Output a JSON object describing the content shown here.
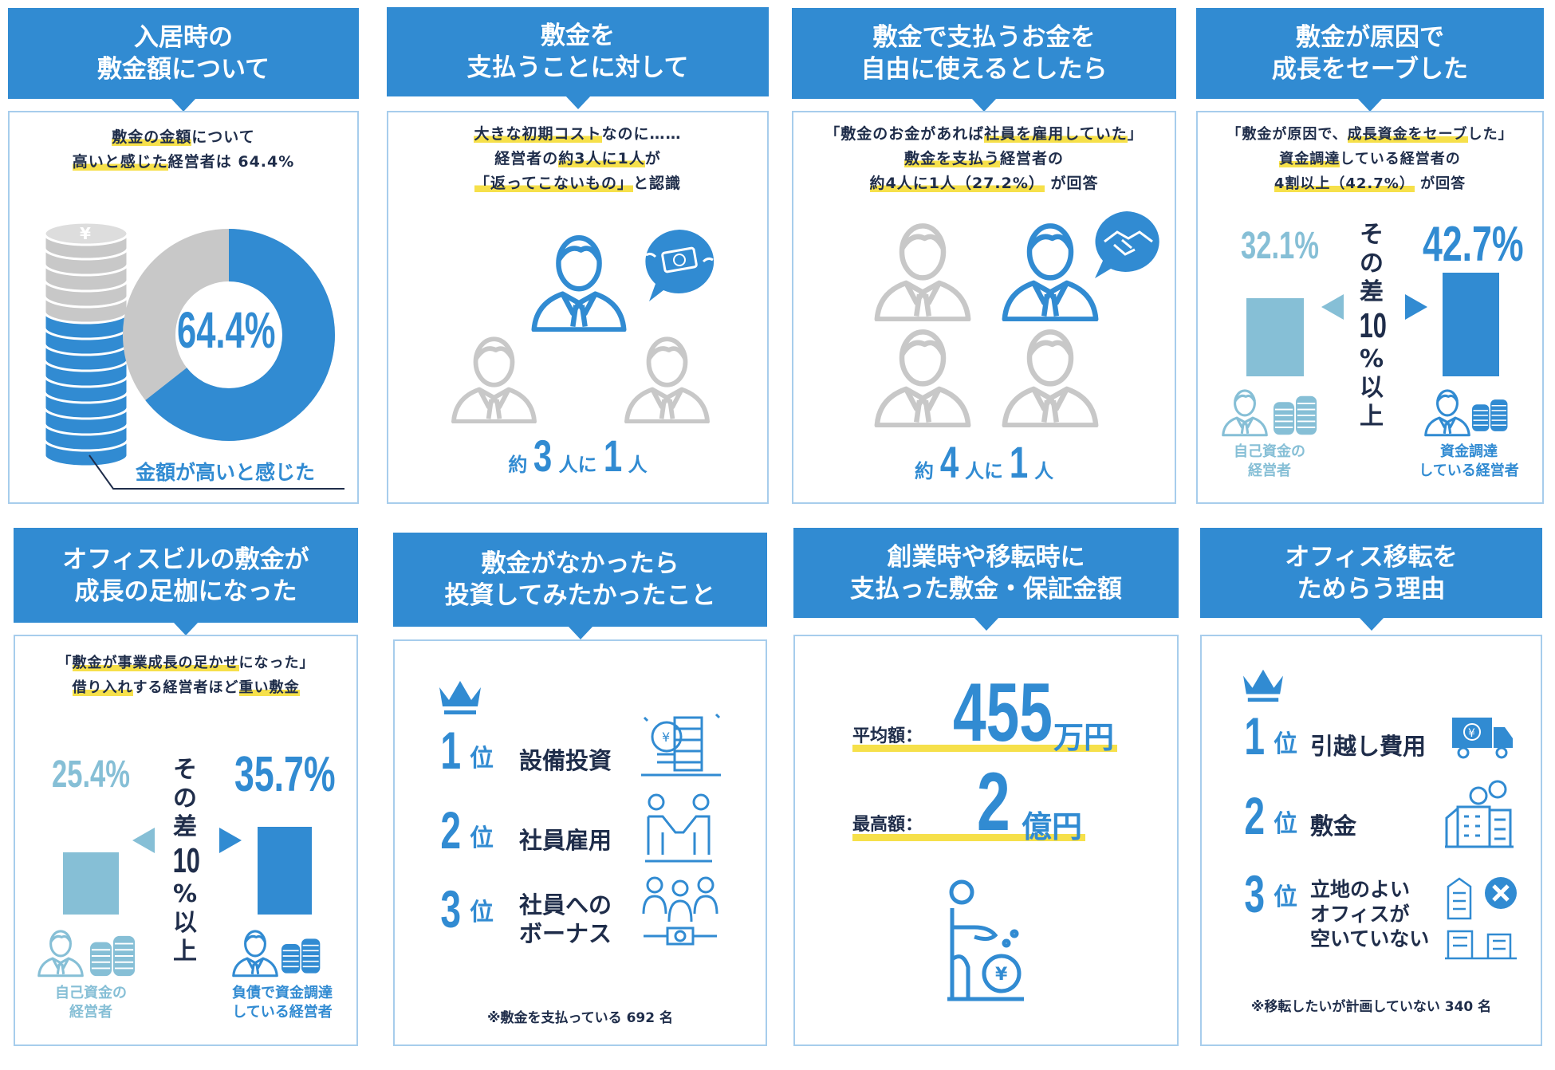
{
  "colors": {
    "primary": "#318bd2",
    "light": "#86bfd6",
    "gray": "#c8c8c8",
    "text": "#1f2d4a",
    "highlight": "#f6e04a"
  },
  "p1": {
    "title": [
      "入居時の",
      "敷金額について"
    ],
    "lines": [
      [
        {
          "t": "敷金の金額",
          "hl": true
        },
        {
          "t": "について"
        }
      ],
      [
        {
          "t": "高いと感じた",
          "hl": true
        },
        {
          "t": "経営者は 64.4%"
        }
      ]
    ],
    "donut": {
      "value": 64.4,
      "label": "64.4%",
      "caption": "金額が高いと感じた"
    }
  },
  "p2": {
    "title": [
      "敷金を",
      "支払うことに対して"
    ],
    "lines": [
      [
        {
          "t": "大きな初期コスト",
          "hl": true
        },
        {
          "t": "なのに……"
        }
      ],
      [
        {
          "t": "経営者の"
        },
        {
          "t": "約3人に1人",
          "hl": true
        },
        {
          "t": "が"
        }
      ],
      [
        {
          "t": "「返ってこないもの」",
          "hl": true
        },
        {
          "t": "と認識"
        }
      ]
    ],
    "ratio": {
      "prefix": "約",
      "n": "3",
      "mid": "人に",
      "one": "1",
      "suffix": "人"
    },
    "bubble_icon": "flying-money-icon"
  },
  "p3": {
    "title": [
      "敷金で支払うお金を",
      "自由に使えるとしたら"
    ],
    "lines": [
      [
        {
          "t": "「敷金のお金があれば"
        },
        {
          "t": "社員を雇用していた",
          "hl": true
        },
        {
          "t": "」"
        }
      ],
      [
        {
          "t": "敷金を支払う",
          "hl": true
        },
        {
          "t": "経営者の"
        }
      ],
      [
        {
          "t": "約4人に1人（27.2%）",
          "hl": true
        },
        {
          "t": " が回答"
        }
      ]
    ],
    "ratio": {
      "prefix": "約",
      "n": "4",
      "mid": "人に",
      "one": "1",
      "suffix": "人"
    },
    "bubble_icon": "handshake-icon"
  },
  "p4": {
    "title": [
      "敷金が原因で",
      "成長をセーブした"
    ],
    "lines": [
      [
        {
          "t": "「敷金が原因で、"
        },
        {
          "t": "成長資金をセーブ",
          "hl": true
        },
        {
          "t": "した」"
        }
      ],
      [
        {
          "t": "資金調達",
          "hl": true
        },
        {
          "t": "している経営者の"
        }
      ],
      [
        {
          "t": "4割以上（42.7%）",
          "hl": true
        },
        {
          "t": " が回答"
        }
      ]
    ],
    "left": {
      "value": 32.1,
      "label": "32.1%",
      "caption": [
        "自己資金の",
        "経営者"
      ]
    },
    "right": {
      "value": 42.7,
      "label": "42.7%",
      "caption": [
        "資金調達",
        "している経営者"
      ]
    },
    "diff": [
      "そ",
      "の",
      "差",
      "10",
      "%",
      "以",
      "上"
    ]
  },
  "p5": {
    "title": [
      "オフィスビルの敷金が",
      "成長の足枷になった"
    ],
    "lines": [
      [
        {
          "t": "「"
        },
        {
          "t": "敷金が事業成長の足かせ",
          "hl": true
        },
        {
          "t": "になった」"
        }
      ],
      [
        {
          "t": "借り入れ",
          "hl": true
        },
        {
          "t": "する経営者ほど"
        },
        {
          "t": "重い敷金",
          "hl": true
        }
      ]
    ],
    "left": {
      "value": 25.4,
      "label": "25.4%",
      "caption": [
        "自己資金の",
        "経営者"
      ]
    },
    "right": {
      "value": 35.7,
      "label": "35.7%",
      "caption": [
        "負債で資金調達",
        "している経営者"
      ]
    },
    "diff": [
      "そ",
      "の",
      "差",
      "10",
      "%",
      "以",
      "上"
    ]
  },
  "p6": {
    "title": [
      "敷金がなかったら",
      "投資してみたかったこと"
    ],
    "ranks": [
      {
        "n": "1",
        "suffix": "位",
        "label": "設備投資",
        "icon": "equipment-investment-icon"
      },
      {
        "n": "2",
        "suffix": "位",
        "label": "社員雇用",
        "icon": "hiring-handshake-icon"
      },
      {
        "n": "3",
        "suffix": "位",
        "label": "社員への\nボーナス",
        "icon": "team-bonus-icon"
      }
    ],
    "note": "※敷金を支払っている 692 名"
  },
  "p7": {
    "title": [
      "創業時や移転時に",
      "支払った敷金・保証金額"
    ],
    "avg": {
      "label": "平均額：",
      "value": "455",
      "unit": "万円"
    },
    "max": {
      "label": "最高額：",
      "value": "2",
      "unit": "億円"
    }
  },
  "p8": {
    "title": [
      "オフィス移転を",
      "ためらう理由"
    ],
    "ranks": [
      {
        "n": "1",
        "suffix": "位",
        "label": "引越し費用",
        "icon": "moving-truck-icon"
      },
      {
        "n": "2",
        "suffix": "位",
        "label": "敷金",
        "icon": "building-money-icon"
      },
      {
        "n": "3",
        "suffix": "位",
        "label": "立地のよい\nオフィスが\n空いていない",
        "icon": "no-vacant-office-icon"
      }
    ],
    "note": "※移転したいが計画していない 340 名"
  }
}
